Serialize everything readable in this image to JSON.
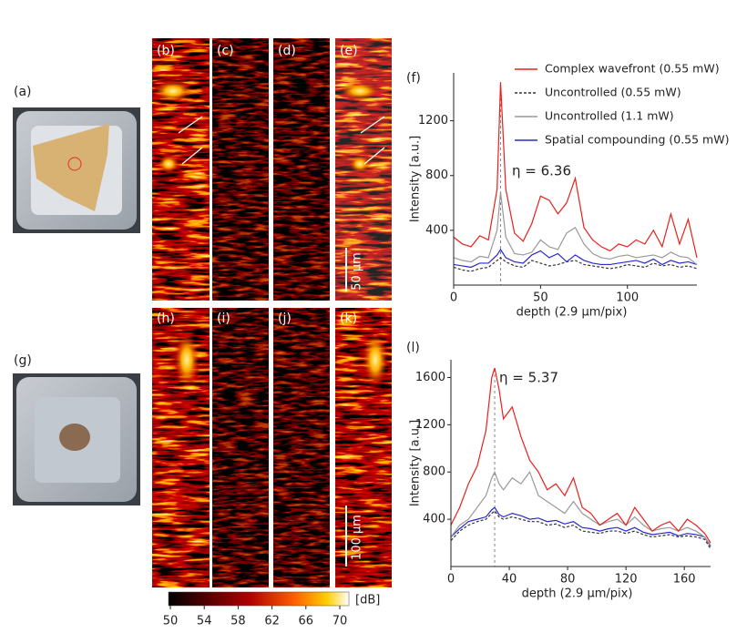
{
  "panel_labels": [
    "(a)",
    "(b)",
    "(c)",
    "(d)",
    "(e)",
    "(f)",
    "(g)",
    "(h)",
    "(i)",
    "(j)",
    "(k)",
    "(l)"
  ],
  "scale_bars": [
    "50 μm",
    "100 μm"
  ],
  "colorbar": {
    "ticks": [
      50,
      54,
      58,
      62,
      66,
      70
    ],
    "unit": "[dB]"
  },
  "chart_data": [
    {
      "type": "line",
      "xlabel": "depth (2.9 μm/pix)",
      "ylabel": "Intensity [a.u.]",
      "annotation": "η = 6.36",
      "peak_x": 27,
      "xlim": [
        0,
        140
      ],
      "ylim": [
        0,
        1550
      ],
      "xticks": [
        0,
        50,
        100
      ],
      "yticks": [
        400,
        800,
        1200
      ],
      "x": [
        0,
        5,
        10,
        15,
        20,
        25,
        27,
        30,
        35,
        40,
        45,
        50,
        55,
        60,
        65,
        70,
        75,
        80,
        85,
        90,
        95,
        100,
        105,
        110,
        115,
        120,
        125,
        130,
        135,
        140
      ],
      "series": [
        {
          "name": "Complex wavefront (0.55 mW)",
          "color": "#e8201c",
          "dash": false,
          "values": [
            350,
            300,
            280,
            360,
            330,
            700,
            1480,
            700,
            380,
            320,
            450,
            650,
            620,
            520,
            600,
            780,
            420,
            330,
            280,
            250,
            300,
            280,
            330,
            300,
            400,
            280,
            520,
            300,
            480,
            200
          ]
        },
        {
          "name": "Uncontrolled (0.55 mW)",
          "color": "#333333",
          "dash": true,
          "values": [
            130,
            110,
            100,
            120,
            130,
            180,
            200,
            170,
            140,
            130,
            180,
            160,
            140,
            150,
            170,
            180,
            150,
            140,
            130,
            120,
            130,
            150,
            140,
            130,
            160,
            140,
            150,
            130,
            140,
            120
          ]
        },
        {
          "name": "Uncontrolled (1.1 mW)",
          "color": "#999999",
          "dash": false,
          "values": [
            200,
            180,
            170,
            210,
            200,
            400,
            680,
            350,
            230,
            220,
            240,
            330,
            280,
            260,
            380,
            420,
            300,
            230,
            200,
            190,
            210,
            220,
            200,
            210,
            220,
            200,
            240,
            210,
            200,
            150
          ]
        },
        {
          "name": "Spatial compounding (0.55 mW)",
          "color": "#2a2ad0",
          "dash": false,
          "values": [
            150,
            140,
            130,
            160,
            160,
            220,
            260,
            200,
            170,
            160,
            220,
            250,
            200,
            230,
            170,
            220,
            180,
            160,
            150,
            150,
            160,
            170,
            180,
            160,
            190,
            150,
            180,
            160,
            170,
            150
          ]
        }
      ]
    },
    {
      "type": "line",
      "xlabel": "depth (2.9 μm/pix)",
      "ylabel": "Intensity [a.u.]",
      "annotation": "η = 5.37",
      "peak_x": 30,
      "xlim": [
        0,
        178
      ],
      "ylim": [
        0,
        1750
      ],
      "xticks": [
        0,
        40,
        80,
        120,
        160
      ],
      "yticks": [
        400,
        800,
        1200,
        1600
      ],
      "x": [
        0,
        6,
        12,
        18,
        24,
        28,
        30,
        33,
        36,
        42,
        48,
        54,
        60,
        66,
        72,
        78,
        84,
        90,
        96,
        102,
        108,
        114,
        120,
        126,
        132,
        138,
        144,
        150,
        156,
        162,
        168,
        174,
        178
      ],
      "series": [
        {
          "color": "#e8201c",
          "dash": false,
          "values": [
            350,
            500,
            700,
            850,
            1150,
            1600,
            1680,
            1500,
            1250,
            1350,
            1100,
            900,
            800,
            650,
            700,
            600,
            750,
            500,
            450,
            350,
            400,
            450,
            350,
            500,
            400,
            300,
            350,
            380,
            300,
            400,
            350,
            280,
            200
          ]
        },
        {
          "color": "#333333",
          "dash": true,
          "values": [
            220,
            300,
            350,
            380,
            400,
            450,
            470,
            420,
            400,
            420,
            400,
            380,
            380,
            350,
            360,
            330,
            350,
            300,
            290,
            280,
            300,
            300,
            280,
            300,
            270,
            250,
            260,
            270,
            250,
            260,
            250,
            230,
            150
          ]
        },
        {
          "color": "#999999",
          "dash": false,
          "values": [
            250,
            350,
            400,
            500,
            600,
            750,
            800,
            700,
            650,
            750,
            700,
            800,
            600,
            550,
            500,
            450,
            550,
            450,
            400,
            350,
            380,
            400,
            350,
            420,
            350,
            300,
            320,
            330,
            300,
            330,
            300,
            250,
            180
          ]
        },
        {
          "color": "#2a2ad0",
          "dash": false,
          "values": [
            250,
            320,
            380,
            400,
            420,
            480,
            500,
            440,
            420,
            450,
            430,
            400,
            410,
            380,
            390,
            360,
            380,
            330,
            320,
            300,
            320,
            330,
            300,
            330,
            290,
            270,
            280,
            290,
            260,
            280,
            270,
            250,
            170
          ]
        }
      ]
    }
  ]
}
